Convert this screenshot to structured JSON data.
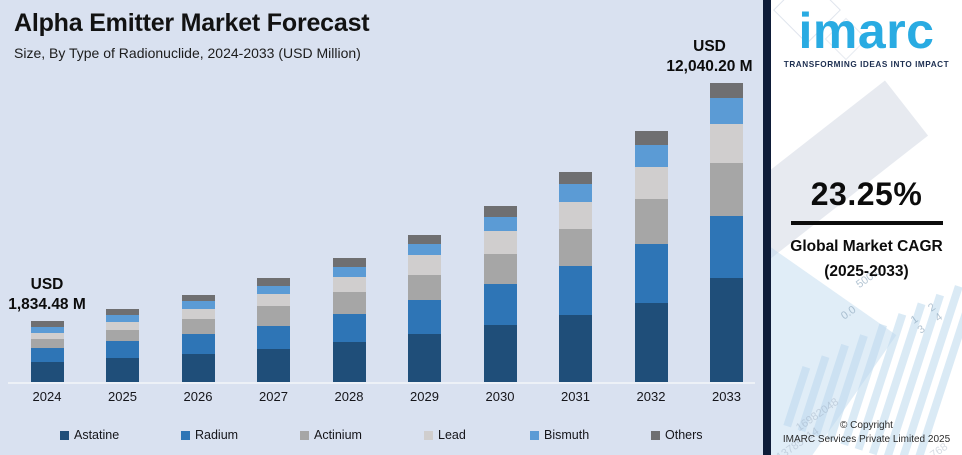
{
  "header": {
    "title": "Alpha Emitter Market Forecast",
    "subtitle": "Size, By Type of Radionuclide, 2024-2033 (USD Million)"
  },
  "chart_data": {
    "type": "bar",
    "stacked": true,
    "title": "Alpha Emitter Market Forecast",
    "subtitle": "Size, By Type of Radionuclide, 2024-2033 (USD Million)",
    "unit": "USD Million",
    "grid": false,
    "legend_position": "bottom",
    "categories": [
      "2024",
      "2025",
      "2026",
      "2027",
      "2028",
      "2029",
      "2030",
      "2031",
      "2032",
      "2033"
    ],
    "totals_usd_million": [
      1834.48,
      2261.0,
      2786.7,
      3434.6,
      4233.2,
      5217.4,
      6430.4,
      7925.5,
      9768.2,
      12040.2
    ],
    "series": [
      {
        "name": "Astatine",
        "color": "#1F4E79",
        "values": [
          614.6,
          746.1,
          905.7,
          1078.5,
          1354.6,
          1700.9,
          2070.6,
          2528.2,
          3096.5,
          4202.0
        ]
      },
      {
        "name": "Radium",
        "color": "#2E75B6",
        "values": [
          421.9,
          515.5,
          624.2,
          793.4,
          973.6,
          1200.0,
          1491.9,
          1854.6,
          2295.5,
          2480.3
        ]
      },
      {
        "name": "Actinium",
        "color": "#A6A6A6",
        "values": [
          247.7,
          350.5,
          501.6,
          638.8,
          745.0,
          881.7,
          1106.0,
          1394.9,
          1748.5,
          2131.1
        ]
      },
      {
        "name": "Lead",
        "color": "#D0CECE",
        "values": [
          201.8,
          257.8,
          323.3,
          419.0,
          533.4,
          699.1,
          842.4,
          1022.4,
          1250.3,
          1577.3
        ]
      },
      {
        "name": "Bismuth",
        "color": "#5B9BD5",
        "values": [
          178.0,
          210.3,
          248.0,
          264.5,
          338.7,
          401.7,
          520.9,
          665.7,
          840.1,
          1035.5
        ]
      },
      {
        "name": "Others",
        "color": "#6F6F71",
        "values": [
          170.6,
          180.9,
          183.9,
          240.4,
          287.9,
          333.9,
          398.7,
          459.7,
          537.3,
          614.1
        ]
      }
    ],
    "annotations": {
      "first": {
        "year": "2024",
        "line1": "USD",
        "line2": "1,834.48 M"
      },
      "last": {
        "year": "2033",
        "line1": "USD",
        "line2": "12,040.20 M"
      }
    }
  },
  "brand": {
    "logo_text": "imarc",
    "tagline": "TRANSFORMING IDEAS INTO IMPACT",
    "cagr": {
      "value": "23.25%",
      "label": "Global Market CAGR",
      "period": "(2025-2033)"
    },
    "copyright": {
      "line1": "© Copyright",
      "line2": "IMARC Services Private Limited 2025"
    },
    "watermark_texts": {
      "t500": "500.0",
      "t00": "0.0",
      "t1234": "1 2 3 4",
      "n1": "16982048",
      "n2": "0.13785714",
      "n3": "768"
    }
  },
  "colors": {
    "chart_background": "#D9E1F0",
    "panel_background": "#FFFFFF",
    "accent_strip": "#0E1C38",
    "logo_blue": "#29ABE2",
    "text_dark": "#121212",
    "axis_line": "#EDF1F7"
  }
}
